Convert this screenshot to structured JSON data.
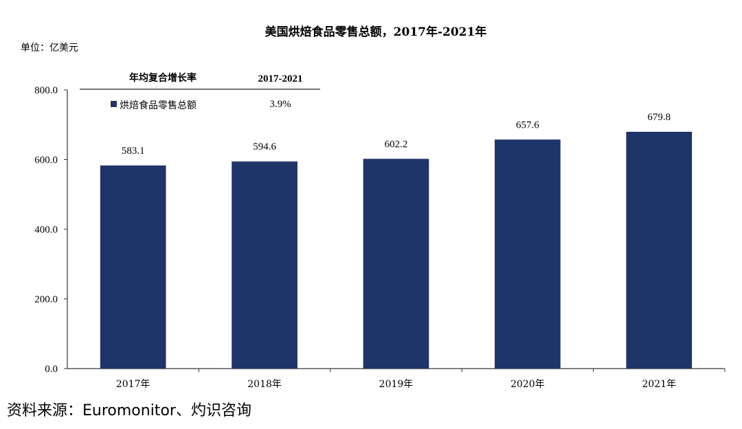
{
  "chart_data": {
    "type": "bar",
    "title": "美国烘焙食品零售总额，2017年-2021年",
    "unit_label": "单位：亿美元",
    "categories": [
      "2017年",
      "2018年",
      "2019年",
      "2020年",
      "2021年"
    ],
    "series": [
      {
        "name": "烘焙食品零售总额",
        "values": [
          583.1,
          594.6,
          602.2,
          657.6,
          679.8
        ],
        "value_labels": [
          "583.1",
          "594.6",
          "602.2",
          "657.6",
          "679.8"
        ],
        "color": "#1f3468"
      }
    ],
    "ylim": [
      0,
      800
    ],
    "yticks": [
      0,
      200,
      400,
      600,
      800
    ],
    "ytick_labels": [
      "0.0",
      "200.0",
      "400.0",
      "600.0",
      "800.0"
    ],
    "grid": false,
    "legend_placement": "top-left",
    "legend_table": {
      "header_label": "年均复合增长率",
      "period_label": "2017-2021",
      "rows": [
        {
          "series": "烘焙食品零售总额",
          "value": "3.9%"
        }
      ]
    }
  },
  "source_note": "资料来源：Euromonitor、灼识咨询"
}
